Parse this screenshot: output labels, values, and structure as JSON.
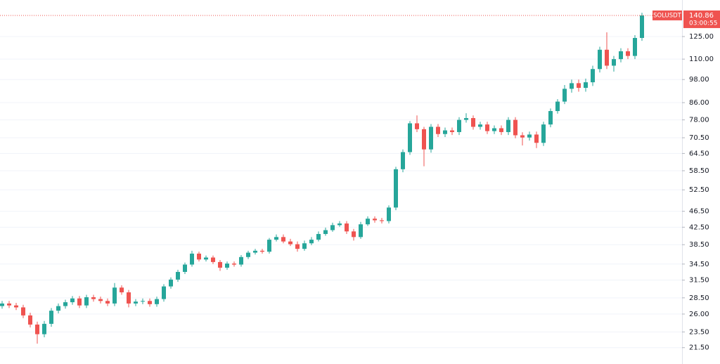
{
  "chart_data": {
    "type": "candlestick",
    "symbol": "SOLUSDT",
    "last_price": 140.86,
    "countdown": "03:00:55",
    "log_scale": true,
    "grid": true,
    "up_color": "#26a69a",
    "down_color": "#ef5350",
    "ylim": [
      19.6,
      153.7
    ],
    "yticks": [
      {
        "value": 125,
        "label": "125.00"
      },
      {
        "value": 110,
        "label": "110.00"
      },
      {
        "value": 98,
        "label": "98.00"
      },
      {
        "value": 86,
        "label": "86.00"
      },
      {
        "value": 78,
        "label": "78.00"
      },
      {
        "value": 70.5,
        "label": "70.50"
      },
      {
        "value": 64.5,
        "label": "64.50"
      },
      {
        "value": 58.5,
        "label": "58.50"
      },
      {
        "value": 52.5,
        "label": "52.50"
      },
      {
        "value": 46.5,
        "label": "46.50"
      },
      {
        "value": 42.5,
        "label": "42.50"
      },
      {
        "value": 38.5,
        "label": "38.50"
      },
      {
        "value": 34.5,
        "label": "34.50"
      },
      {
        "value": 31.5,
        "label": "31.50"
      },
      {
        "value": 28.5,
        "label": "28.50"
      },
      {
        "value": 26,
        "label": "26.00"
      },
      {
        "value": 23.5,
        "label": "23.50"
      },
      {
        "value": 21.5,
        "label": "21.50"
      }
    ],
    "open": [
      27.2,
      27.6,
      27.3,
      27.0,
      25.8,
      24.5,
      23.2,
      24.6,
      26.5,
      27.2,
      27.8,
      28.4,
      27.3,
      28.6,
      28.3,
      28.0,
      27.6,
      30.2,
      29.4,
      27.6,
      27.9,
      28.0,
      27.5,
      28.3,
      30.4,
      31.6,
      33.0,
      34.4,
      36.6,
      35.4,
      35.8,
      34.9,
      33.8,
      34.6,
      34.4,
      35.9,
      36.8,
      37.2,
      37.0,
      39.6,
      40.2,
      39.2,
      38.6,
      37.6,
      38.8,
      39.6,
      40.9,
      41.8,
      43.0,
      43.4,
      41.5,
      40.2,
      43.2,
      44.6,
      44.2,
      44.0,
      47.5,
      59.0,
      65.0,
      76.5,
      74.0,
      66.0,
      75.0,
      72.0,
      73.5,
      72.8,
      78.0,
      78.8,
      75.0,
      76.0,
      73.2,
      74.4,
      72.8,
      78.0,
      71.5,
      70.6,
      71.8,
      68.5,
      76.0,
      82.0,
      86.5,
      93.0,
      96.0,
      93.5,
      96.5,
      104.0,
      116.0,
      106.0,
      110.0,
      115.0,
      112.0,
      124.0
    ],
    "high": [
      28.0,
      28.0,
      27.7,
      27.4,
      26.2,
      24.9,
      25.0,
      26.9,
      27.6,
      28.2,
      28.8,
      28.8,
      29.0,
      29.0,
      28.7,
      28.4,
      31.0,
      30.6,
      29.8,
      28.3,
      28.4,
      28.4,
      28.7,
      30.8,
      32.0,
      33.4,
      34.8,
      37.2,
      37.0,
      36.2,
      36.2,
      35.3,
      35.0,
      35.0,
      36.3,
      37.2,
      37.6,
      37.6,
      40.0,
      40.8,
      40.8,
      39.8,
      39.2,
      39.4,
      40.2,
      41.5,
      42.4,
      43.6,
      44.0,
      44.0,
      42.1,
      43.8,
      45.2,
      45.2,
      44.8,
      48.1,
      59.8,
      66.0,
      77.5,
      80.0,
      75.0,
      76.2,
      76.2,
      74.7,
      74.7,
      79.2,
      81.0,
      80.0,
      77.2,
      77.2,
      75.6,
      75.6,
      79.2,
      79.2,
      72.7,
      73.0,
      73.0,
      77.2,
      83.2,
      87.7,
      95.0,
      98.0,
      98.0,
      98.5,
      106.0,
      118.0,
      128.0,
      112.0,
      117.0,
      117.0,
      126.0,
      143.0
    ],
    "low": [
      26.8,
      26.9,
      26.6,
      25.4,
      24.1,
      22.0,
      22.8,
      24.2,
      26.1,
      26.8,
      27.4,
      26.9,
      26.9,
      27.9,
      27.6,
      27.2,
      27.2,
      29.0,
      27.0,
      27.2,
      27.5,
      27.1,
      27.1,
      27.9,
      30.0,
      31.2,
      32.6,
      34.0,
      35.0,
      35.0,
      34.5,
      33.2,
      33.4,
      34.0,
      34.0,
      35.5,
      36.4,
      36.6,
      36.6,
      39.2,
      38.8,
      38.2,
      37.0,
      37.2,
      38.4,
      39.2,
      40.5,
      41.4,
      42.6,
      40.9,
      39.4,
      39.8,
      42.8,
      43.6,
      43.4,
      43.4,
      46.8,
      58.0,
      64.0,
      72.8,
      60.0,
      64.8,
      70.8,
      70.8,
      71.6,
      71.6,
      76.8,
      73.8,
      73.8,
      72.0,
      72.0,
      71.6,
      71.6,
      70.3,
      67.5,
      69.4,
      66.5,
      67.3,
      74.8,
      80.8,
      85.3,
      91.0,
      91.5,
      91.5,
      94.5,
      102.0,
      104.0,
      102.5,
      108.0,
      110.0,
      110.0,
      122.0
    ],
    "close": [
      27.6,
      27.3,
      27.0,
      25.8,
      24.5,
      23.2,
      24.6,
      26.5,
      27.2,
      27.8,
      28.4,
      27.3,
      28.6,
      28.3,
      28.0,
      27.6,
      30.2,
      29.4,
      27.6,
      27.9,
      28.0,
      27.5,
      28.3,
      30.4,
      31.6,
      33.0,
      34.4,
      36.6,
      35.4,
      35.8,
      34.9,
      33.8,
      34.6,
      34.4,
      35.9,
      36.8,
      37.2,
      37.0,
      39.6,
      40.2,
      39.2,
      38.6,
      37.6,
      38.8,
      39.6,
      40.9,
      41.8,
      43.0,
      43.4,
      41.5,
      40.2,
      43.2,
      44.6,
      44.2,
      44.0,
      47.5,
      59.0,
      65.0,
      76.5,
      74.0,
      66.0,
      75.0,
      72.0,
      73.5,
      72.8,
      78.0,
      78.8,
      75.0,
      76.0,
      73.2,
      74.4,
      72.8,
      78.0,
      71.5,
      70.6,
      71.8,
      68.5,
      76.0,
      82.0,
      86.5,
      93.0,
      96.0,
      93.5,
      96.5,
      104.0,
      116.0,
      106.0,
      110.0,
      115.0,
      112.0,
      124.0,
      140.86
    ]
  }
}
